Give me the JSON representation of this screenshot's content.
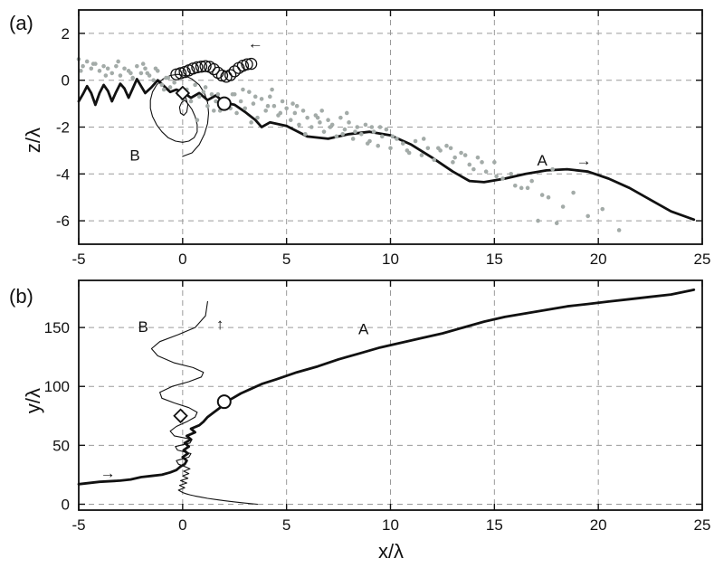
{
  "chart_data": [
    {
      "panel_label": "(a)",
      "type": "line",
      "xlabel": "",
      "ylabel": "z/λ",
      "xlim": [
        -5,
        25
      ],
      "ylim": [
        -7,
        3
      ],
      "xticks": [
        "-5",
        "0",
        "5",
        "10",
        "15",
        "20",
        "25"
      ],
      "yticks": [
        "2",
        "0",
        "-2",
        "-4",
        "-6"
      ],
      "grid": true,
      "annotations": [
        {
          "text": "B",
          "x": -2.3,
          "y": -3.2
        },
        {
          "text": "A",
          "x": 17.3,
          "y": -3.4
        },
        {
          "text": "→",
          "x": 19.3,
          "y": -3.4
        },
        {
          "text": "←",
          "x": 3.5,
          "y": 1.6
        }
      ],
      "series": [
        {
          "name": "A",
          "style": "thick-line",
          "x": [
            -5,
            -4.8,
            -4.6,
            -4.4,
            -4.2,
            -4.0,
            -3.8,
            -3.6,
            -3.4,
            -3.2,
            -3.0,
            -2.8,
            -2.6,
            -2.4,
            -2.2,
            -2.0,
            -1.8,
            -1.5,
            -1.2,
            -0.9,
            -0.6,
            -0.3,
            0.0,
            0.4,
            0.8,
            1.2,
            1.6,
            2.0,
            2.5,
            3.0,
            3.5,
            3.8,
            4.2,
            5,
            6,
            7,
            8,
            9,
            10,
            11,
            12,
            13,
            13.8,
            14.5,
            15.5,
            16.5,
            17.5,
            18.5,
            19.5,
            20.5,
            21.5,
            22.5,
            23.5,
            24.6
          ],
          "y": [
            -0.9,
            -0.6,
            -0.25,
            -0.55,
            -1.05,
            -0.55,
            -0.2,
            -0.45,
            -0.9,
            -0.5,
            -0.15,
            -0.35,
            -0.75,
            -0.35,
            0.05,
            -0.25,
            -0.55,
            -0.3,
            0.0,
            -0.25,
            -0.5,
            -0.4,
            -0.5,
            -0.75,
            -0.55,
            -0.85,
            -0.65,
            -0.95,
            -1.05,
            -1.35,
            -1.7,
            -2.0,
            -1.8,
            -1.95,
            -2.4,
            -2.5,
            -2.3,
            -2.2,
            -2.35,
            -2.75,
            -3.3,
            -3.9,
            -4.3,
            -4.35,
            -4.2,
            -4.0,
            -3.85,
            -3.8,
            -3.9,
            -4.2,
            -4.6,
            -5.1,
            -5.6,
            -5.95
          ]
        },
        {
          "name": "B",
          "style": "thin-loops",
          "x": [
            0.0,
            0.15,
            0.25,
            0.2,
            0.05,
            -0.1,
            -0.15,
            -0.05,
            0.1,
            0.25,
            0.45,
            0.6,
            0.7,
            0.7,
            0.55,
            0.3,
            0.0,
            -0.35,
            -0.7,
            -1.0,
            -1.25,
            -1.45,
            -1.55,
            -1.55,
            -1.45,
            -1.25,
            -0.95,
            -0.6,
            -0.25,
            0.1,
            0.45,
            0.8,
            1.05,
            1.2,
            1.25,
            1.2,
            1.05,
            0.8,
            0.45,
            0.0
          ],
          "y": [
            -0.5,
            -0.75,
            -1.05,
            -1.35,
            -1.5,
            -1.4,
            -1.15,
            -0.95,
            -0.85,
            -1.0,
            -1.25,
            -1.55,
            -1.9,
            -2.2,
            -2.45,
            -2.6,
            -2.65,
            -2.6,
            -2.45,
            -2.2,
            -1.9,
            -1.55,
            -1.2,
            -0.85,
            -0.5,
            -0.2,
            0.05,
            0.2,
            0.25,
            0.2,
            0.05,
            -0.2,
            -0.55,
            -0.95,
            -1.4,
            -1.85,
            -2.3,
            -2.75,
            -3.1,
            -3.25
          ]
        },
        {
          "name": "B rings",
          "style": "open-circles",
          "x": [
            -0.3,
            -0.1,
            0.1,
            0.3,
            0.5,
            0.7,
            0.9,
            1.1,
            1.3,
            1.5,
            1.7,
            1.9,
            2.1,
            2.3,
            2.5,
            2.7,
            2.9,
            3.1,
            3.3
          ],
          "y": [
            0.25,
            0.3,
            0.35,
            0.42,
            0.5,
            0.55,
            0.58,
            0.6,
            0.57,
            0.47,
            0.32,
            0.2,
            0.15,
            0.22,
            0.38,
            0.52,
            0.62,
            0.68,
            0.7
          ]
        },
        {
          "name": "scatter",
          "style": "grey-dots",
          "x": [
            -5.0,
            -4.8,
            -4.6,
            -4.4,
            -4.2,
            -4.0,
            -3.8,
            -3.6,
            -3.4,
            -3.2,
            -3.0,
            -2.8,
            -2.6,
            -2.4,
            -2.2,
            -2.0,
            -1.8,
            -1.6,
            -1.4,
            -1.2,
            -1.0,
            -0.8,
            -0.6,
            -0.4,
            -0.2,
            0.0,
            0.2,
            0.4,
            0.6,
            0.8,
            1.0,
            1.2,
            1.4,
            1.6,
            1.8,
            2.0,
            2.2,
            2.4,
            2.6,
            2.8,
            3.0,
            3.2,
            3.4,
            3.6,
            3.8,
            4.0,
            4.2,
            4.4,
            4.6,
            4.8,
            5.0,
            5.2,
            5.4,
            5.6,
            5.8,
            6.0,
            6.2,
            6.4,
            6.6,
            6.8,
            7.0,
            7.2,
            7.4,
            7.6,
            7.8,
            8.0,
            8.2,
            8.4,
            8.6,
            8.8,
            9.0,
            9.2,
            9.4,
            9.6,
            9.8,
            10.0,
            10.3,
            10.6,
            10.9,
            11.2,
            11.5,
            11.8,
            12.1,
            12.4,
            12.7,
            13.0,
            13.4,
            13.8,
            14.2,
            14.6,
            15.0,
            15.4,
            15.8,
            16.3,
            16.8,
            17.3,
            17.8,
            18.3,
            18.8,
            19.5,
            20.2,
            21.0,
            -4.9,
            -4.3,
            -3.7,
            -3.1,
            -2.5,
            -1.9,
            -1.3,
            -0.7,
            1.1,
            1.7,
            2.3,
            2.9,
            3.5,
            4.1,
            4.7,
            5.3,
            5.9,
            6.5,
            7.1,
            7.7,
            8.3,
            8.9,
            9.5,
            10.1,
            10.8,
            11.6,
            12.3,
            13.1,
            14.0,
            15.1,
            16.0,
            17.1,
            18.0,
            -0.9,
            -1.7,
            0.7,
            1.5,
            2.5,
            3.3,
            4.3,
            5.5,
            6.7,
            7.9,
            9.1,
            12.9,
            13.6,
            14.4,
            16.6,
            17.6
          ],
          "y": [
            0.9,
            0.6,
            0.8,
            0.5,
            0.7,
            0.4,
            0.6,
            0.5,
            0.3,
            0.6,
            0.2,
            0.5,
            0.4,
            0.1,
            0.6,
            0.3,
            0.5,
            0.2,
            0.0,
            0.4,
            -0.2,
            0.1,
            -0.3,
            -0.1,
            -0.6,
            -0.8,
            -0.4,
            -0.9,
            -0.2,
            -0.7,
            -0.5,
            -1.1,
            -0.6,
            -0.9,
            -1.3,
            -0.8,
            -1.0,
            -0.6,
            -1.4,
            -0.9,
            -1.2,
            -0.5,
            -1.0,
            -1.6,
            -0.8,
            -1.3,
            -0.7,
            -1.1,
            -1.5,
            -0.9,
            -1.2,
            -1.7,
            -1.4,
            -1.9,
            -1.3,
            -1.6,
            -2.0,
            -1.5,
            -1.8,
            -2.2,
            -1.7,
            -1.9,
            -2.4,
            -1.6,
            -2.1,
            -1.8,
            -2.5,
            -2.0,
            -2.3,
            -1.9,
            -2.6,
            -2.2,
            -2.8,
            -2.4,
            -2.1,
            -2.9,
            -2.5,
            -2.7,
            -3.1,
            -2.6,
            -3.2,
            -2.9,
            -3.4,
            -3.0,
            -2.8,
            -3.5,
            -3.1,
            -3.6,
            -3.3,
            -3.9,
            -3.5,
            -4.2,
            -4.0,
            -4.6,
            -4.3,
            -4.9,
            -3.8,
            -5.4,
            -4.8,
            -5.8,
            -5.5,
            -6.4,
            0.4,
            0.7,
            0.2,
            0.8,
            0.3,
            0.7,
            0.5,
            0.1,
            -0.3,
            -0.6,
            -1.2,
            -0.4,
            -0.7,
            -1.1,
            -1.4,
            -1.0,
            -2.3,
            -1.6,
            -2.0,
            -2.3,
            -2.2,
            -2.7,
            -2.0,
            -2.4,
            -3.0,
            -2.5,
            -2.9,
            -3.3,
            -3.8,
            -4.1,
            -4.5,
            -6.0,
            -6.1,
            -0.4,
            0.3,
            -1.7,
            -1.3,
            -0.6,
            -1.8,
            -0.4,
            -1.1,
            -1.3,
            -1.4,
            -2.0,
            -2.9,
            -3.2,
            -3.5,
            -4.6,
            -5.0
          ]
        },
        {
          "name": "open-circle marker",
          "style": "open-circle-large",
          "x": [
            2.0
          ],
          "y": [
            -1.0
          ]
        },
        {
          "name": "diamond marker",
          "style": "open-diamond",
          "x": [
            0.0
          ],
          "y": [
            -0.55
          ]
        }
      ]
    },
    {
      "panel_label": "(b)",
      "type": "line",
      "xlabel": "x/λ",
      "ylabel": "y/λ",
      "xlim": [
        -5,
        25
      ],
      "ylim": [
        -5,
        190
      ],
      "xticks": [
        "-5",
        "0",
        "5",
        "10",
        "15",
        "20",
        "25"
      ],
      "yticks": [
        "150",
        "100",
        "50",
        "0"
      ],
      "grid": true,
      "annotations": [
        {
          "text": "B",
          "x": -1.9,
          "y": 151
        },
        {
          "text": "A",
          "x": 8.7,
          "y": 149
        },
        {
          "text": "↑",
          "x": 1.8,
          "y": 153
        },
        {
          "text": "→",
          "x": -3.6,
          "y": 27
        }
      ],
      "series": [
        {
          "name": "A",
          "style": "thick-line",
          "x": [
            -5.0,
            -4.0,
            -3.0,
            -2.5,
            -2.0,
            -1.5,
            -1.0,
            -0.6,
            -0.3,
            -0.1,
            0.1,
            0.2,
            0.0,
            0.25,
            0.05,
            0.3,
            0.1,
            0.4,
            0.2,
            0.6,
            0.4,
            0.8,
            1.0,
            1.2,
            1.5,
            1.8,
            2.0,
            2.4,
            2.8,
            3.3,
            3.8,
            4.5,
            5.5,
            6.5,
            7.5,
            8.5,
            9.5,
            10.5,
            11.5,
            12.5,
            13.5,
            14.5,
            15.5,
            16.5,
            17.5,
            18.5,
            19.5,
            20.5,
            21.5,
            22.5,
            23.5,
            24.6
          ],
          "y": [
            17,
            19,
            20,
            21,
            23,
            24,
            25,
            27,
            29,
            32,
            34,
            37,
            40,
            43,
            46,
            49,
            52,
            55,
            58,
            61,
            64,
            67,
            70,
            74,
            78,
            82,
            86,
            90,
            94,
            98,
            102,
            106,
            112,
            117,
            123,
            128,
            133,
            137,
            141,
            145,
            150,
            155,
            159,
            162,
            165,
            168,
            170,
            172,
            174,
            176,
            178,
            182
          ]
        },
        {
          "name": "B",
          "style": "thin-line",
          "x": [
            3.6,
            3.0,
            2.5,
            2.0,
            1.6,
            1.2,
            0.9,
            0.6,
            0.35,
            0.15,
            0.0,
            -0.2,
            0.1,
            -0.15,
            0.2,
            -0.1,
            0.25,
            0.0,
            0.3,
            0.05,
            0.35,
            0.1,
            -0.2,
            -0.3,
            0.3,
            0.4,
            -0.25,
            -0.35,
            0.35,
            0.45,
            -0.4,
            -0.6,
            -0.3,
            0.2,
            0.6,
            0.7,
            0.3,
            -0.4,
            -1.0,
            -1.1,
            -0.5,
            0.3,
            0.9,
            1.0,
            0.5,
            -0.4,
            -1.2,
            -1.5,
            -1.1,
            -0.2,
            0.6,
            1.1,
            1.2
          ],
          "y": [
            0,
            1,
            2,
            3,
            4,
            5,
            6,
            7,
            8,
            9,
            10,
            12,
            14,
            16,
            18,
            20,
            22,
            24,
            26,
            28,
            30,
            32,
            34,
            37,
            40,
            43,
            46,
            49,
            52,
            55,
            58,
            62,
            66,
            70,
            74,
            78,
            82,
            86,
            90,
            95,
            100,
            104,
            108,
            112,
            116,
            120,
            126,
            132,
            138,
            144,
            150,
            160,
            172
          ]
        },
        {
          "name": "open-circle marker",
          "style": "open-circle-large",
          "x": [
            2.0
          ],
          "y": [
            87
          ]
        },
        {
          "name": "diamond marker",
          "style": "open-diamond",
          "x": [
            -0.1
          ],
          "y": [
            75
          ]
        }
      ]
    }
  ]
}
